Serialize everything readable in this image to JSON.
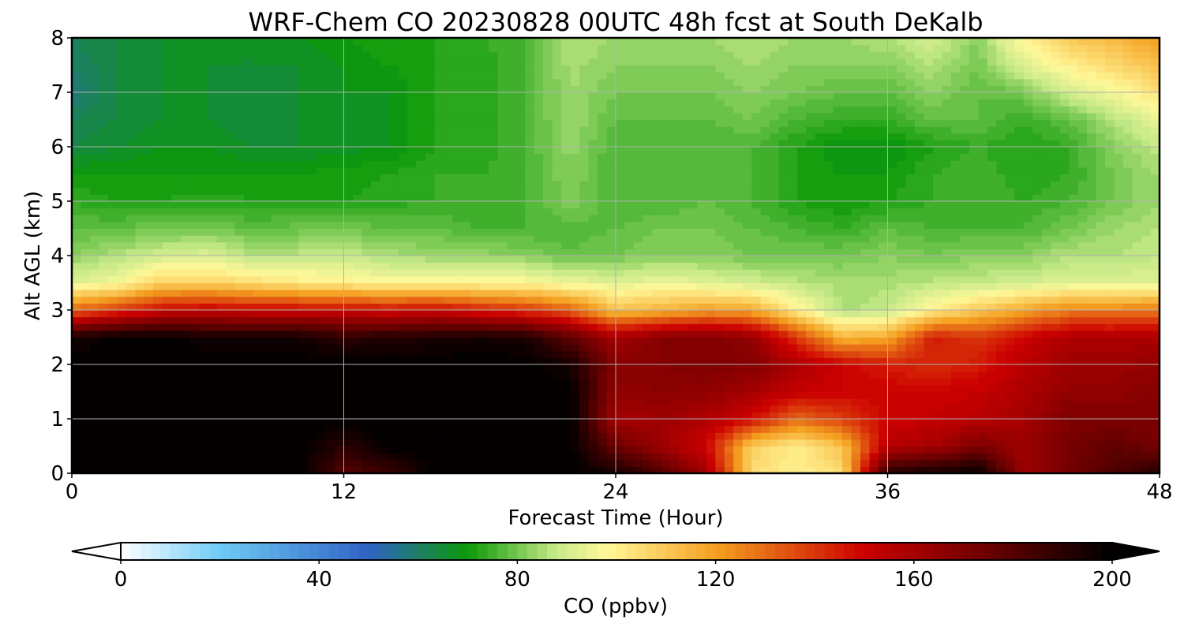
{
  "chart_data": {
    "type": "heatmap",
    "title": "WRF-Chem CO  20230828 00UTC 48h fcst at South DeKalb",
    "xlabel": "Forecast Time (Hour)",
    "ylabel": "Alt AGL (km)",
    "xlim": [
      0,
      48
    ],
    "ylim": [
      0,
      8
    ],
    "xticks": [
      0,
      12,
      24,
      36,
      48
    ],
    "yticks": [
      0,
      1,
      2,
      3,
      4,
      5,
      6,
      7,
      8
    ],
    "grid": true,
    "colorbar": {
      "label": "CO  (ppbv)",
      "min": 0,
      "max": 200,
      "ticks": [
        0,
        40,
        80,
        120,
        160,
        200
      ],
      "extend": "both",
      "levels": 100,
      "colormap_stops": [
        {
          "v": 0,
          "c": "#ffffff"
        },
        {
          "v": 20,
          "c": "#6ecbf5"
        },
        {
          "v": 50,
          "c": "#2f62c4"
        },
        {
          "v": 70,
          "c": "#0b9a08"
        },
        {
          "v": 88,
          "c": "#c8ea8a"
        },
        {
          "v": 98,
          "c": "#fff89a"
        },
        {
          "v": 120,
          "c": "#f4a020"
        },
        {
          "v": 150,
          "c": "#cc0000"
        },
        {
          "v": 175,
          "c": "#6a0000"
        },
        {
          "v": 200,
          "c": "#000000"
        }
      ]
    },
    "x_hours": [
      0,
      2,
      4,
      6,
      8,
      10,
      12,
      14,
      16,
      18,
      20,
      22,
      24,
      26,
      28,
      30,
      32,
      34,
      36,
      38,
      40,
      42,
      44,
      46,
      48
    ],
    "y_km": [
      0,
      0.5,
      1,
      1.5,
      2,
      2.5,
      3,
      3.5,
      4,
      4.5,
      5,
      5.5,
      6,
      6.5,
      7,
      7.5,
      8
    ],
    "z_ppbv": [
      [
        200,
        200,
        200,
        200,
        200,
        200,
        180,
        185,
        200,
        200,
        200,
        200,
        195,
        182,
        160,
        105,
        100,
        104,
        192,
        196,
        200,
        162,
        172,
        182,
        192
      ],
      [
        200,
        200,
        200,
        200,
        200,
        200,
        190,
        200,
        200,
        200,
        200,
        200,
        175,
        162,
        150,
        108,
        100,
        112,
        155,
        160,
        170,
        162,
        172,
        178,
        172
      ],
      [
        200,
        200,
        200,
        200,
        200,
        200,
        200,
        200,
        200,
        200,
        200,
        200,
        160,
        162,
        158,
        148,
        130,
        138,
        150,
        152,
        155,
        160,
        170,
        170,
        170
      ],
      [
        200,
        200,
        200,
        200,
        200,
        200,
        200,
        200,
        200,
        200,
        200,
        200,
        165,
        166,
        165,
        160,
        152,
        150,
        150,
        150,
        152,
        158,
        165,
        165,
        168
      ],
      [
        200,
        200,
        200,
        200,
        200,
        200,
        200,
        200,
        200,
        200,
        200,
        195,
        168,
        168,
        170,
        168,
        158,
        150,
        145,
        142,
        145,
        155,
        162,
        162,
        165
      ],
      [
        195,
        200,
        200,
        196,
        196,
        196,
        190,
        192,
        194,
        196,
        194,
        178,
        160,
        168,
        170,
        165,
        140,
        115,
        118,
        145,
        140,
        150,
        158,
        158,
        158
      ],
      [
        130,
        140,
        150,
        152,
        150,
        150,
        150,
        148,
        150,
        145,
        140,
        132,
        112,
        115,
        120,
        118,
        100,
        85,
        88,
        100,
        110,
        118,
        126,
        126,
        128
      ],
      [
        92,
        96,
        108,
        108,
        105,
        102,
        100,
        98,
        99,
        98,
        98,
        95,
        92,
        95,
        92,
        90,
        87,
        85,
        85,
        87,
        88,
        90,
        92,
        92,
        92
      ],
      [
        82,
        86,
        90,
        92,
        86,
        87,
        88,
        85,
        84,
        83,
        82,
        78,
        80,
        82,
        82,
        80,
        80,
        80,
        82,
        80,
        82,
        82,
        86,
        86,
        88
      ],
      [
        78,
        78,
        80,
        80,
        78,
        79,
        80,
        78,
        78,
        76,
        76,
        77,
        78,
        80,
        80,
        78,
        76,
        74,
        78,
        76,
        76,
        76,
        80,
        84,
        86
      ],
      [
        74,
        72,
        72,
        73,
        72,
        72,
        72,
        73,
        74,
        74,
        76,
        81,
        76,
        76,
        78,
        76,
        72,
        70,
        72,
        74,
        76,
        74,
        76,
        80,
        84
      ],
      [
        70,
        70,
        70,
        70,
        70,
        70,
        71,
        72,
        74,
        74,
        76,
        82,
        76,
        76,
        77,
        76,
        72,
        70,
        70,
        74,
        76,
        72,
        74,
        80,
        84
      ],
      [
        64,
        66,
        68,
        68,
        66,
        66,
        67,
        68,
        72,
        72,
        76,
        83,
        76,
        76,
        76,
        76,
        72,
        68,
        68,
        72,
        74,
        72,
        74,
        82,
        88
      ],
      [
        62,
        64,
        66,
        66,
        64,
        66,
        67,
        68,
        72,
        72,
        76,
        84,
        78,
        78,
        78,
        80,
        76,
        74,
        74,
        78,
        78,
        74,
        78,
        86,
        94
      ],
      [
        58,
        64,
        66,
        66,
        64,
        66,
        68,
        68,
        72,
        72,
        76,
        84,
        80,
        80,
        80,
        82,
        80,
        78,
        78,
        82,
        78,
        80,
        90,
        96,
        104
      ],
      [
        60,
        64,
        66,
        66,
        66,
        66,
        68,
        70,
        72,
        72,
        76,
        85,
        82,
        82,
        82,
        84,
        82,
        82,
        82,
        86,
        80,
        92,
        100,
        106,
        112
      ],
      [
        62,
        64,
        66,
        66,
        66,
        68,
        70,
        72,
        72,
        74,
        76,
        86,
        84,
        84,
        84,
        86,
        84,
        84,
        86,
        90,
        82,
        100,
        110,
        114,
        120
      ]
    ]
  }
}
